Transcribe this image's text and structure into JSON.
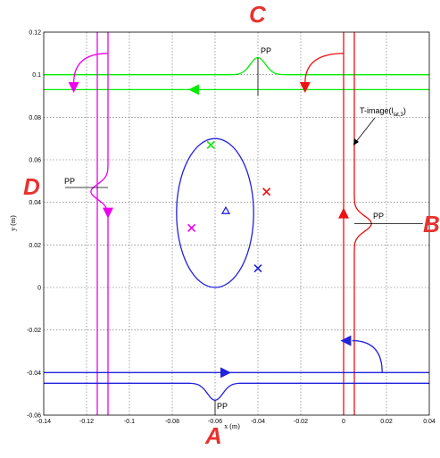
{
  "chart_data": {
    "type": "line",
    "xlabel": "x (m)",
    "ylabel": "y (m)",
    "xlim": [
      -0.14,
      0.04
    ],
    "ylim": [
      -0.06,
      0.12
    ],
    "x_ticks": [
      "-0.14",
      "-0.12",
      "-0.1",
      "-0.08",
      "-0.06",
      "-0.04",
      "-0.02",
      "0",
      "0.02",
      "0.04"
    ],
    "y_ticks": [
      "-0.06",
      "-0.04",
      "-0.02",
      "0",
      "0.02",
      "0.04",
      "0.06",
      "0.08",
      "0.1",
      "0.12"
    ],
    "grid": true,
    "corner_labels": [
      "A",
      "B",
      "C",
      "D"
    ],
    "annotations": [
      "PP",
      "PP",
      "PP",
      "PP",
      "T-image(l",
      "lat,3",
      ")"
    ],
    "series": [
      {
        "color": "#00ee00",
        "lines": [
          {
            "y": 0.1,
            "bump": {
              "center": -0.04,
              "amp": 0.008,
              "width": 0.008
            }
          },
          {
            "y": 0.093
          }
        ],
        "arrow": {
          "x": -0.07,
          "y": 0.093,
          "dir": "left"
        }
      },
      {
        "color": "#ee00ee",
        "lines": [
          {
            "x": -0.115
          },
          {
            "x": -0.11,
            "bump": {
              "center": 0.045,
              "amp": -0.008,
              "width": 0.008
            }
          }
        ],
        "arrow": {
          "x": -0.11,
          "y": 0.035,
          "dir": "down"
        }
      },
      {
        "color": "#ee1111",
        "lines": [
          {
            "x": 0
          },
          {
            "x": 0.005,
            "bump": {
              "center": 0.03,
              "amp": 0.008,
              "width": 0.008
            }
          }
        ],
        "arrow": {
          "x": 0,
          "y": 0.035,
          "dir": "up"
        }
      },
      {
        "color": "#2222dd",
        "lines": [
          {
            "y": -0.04
          },
          {
            "y": -0.045,
            "bump": {
              "center": -0.06,
              "amp": -0.008,
              "width": 0.008
            }
          }
        ],
        "arrow": {
          "x": -0.055,
          "y": -0.04,
          "dir": "right"
        }
      }
    ],
    "ellipse": {
      "cx": -0.06,
      "cy": 0.035,
      "rx": 0.018,
      "ry": 0.035,
      "color": "#2222dd"
    },
    "markers": [
      {
        "shape": "x",
        "x": -0.062,
        "y": 0.067,
        "color": "#00ee00"
      },
      {
        "shape": "x",
        "x": -0.036,
        "y": 0.045,
        "color": "#ee1111"
      },
      {
        "shape": "x",
        "x": -0.071,
        "y": 0.028,
        "color": "#ee00ee"
      },
      {
        "shape": "x",
        "x": -0.04,
        "y": 0.009,
        "color": "#2222dd"
      },
      {
        "shape": "triangle",
        "x": -0.055,
        "y": 0.036,
        "color": "#2222dd"
      }
    ]
  }
}
